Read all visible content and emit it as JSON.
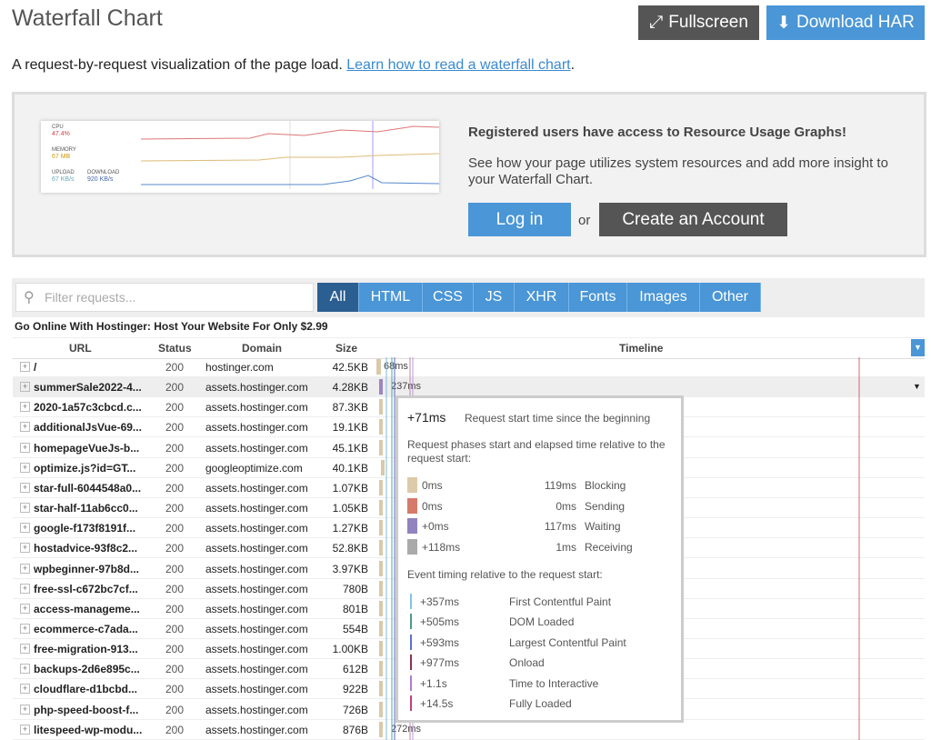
{
  "header": {
    "title": "Waterfall Chart",
    "fullscreen": "Fullscreen",
    "download": "Download HAR"
  },
  "intro": {
    "text": "A request-by-request visualization of the page load.",
    "link": "Learn how to read a waterfall chart",
    "end": "."
  },
  "promo": {
    "mini_chart": {
      "cpu_label": "CPU",
      "cpu_value": "47.4%",
      "memory_label": "MEMORY",
      "memory_value": "67 MB",
      "upload_label": "UPLOAD",
      "upload_value": "67 KB/s",
      "download_label": "DOWNLOAD",
      "download_value": "920 KB/s"
    },
    "heading": "Registered users have access to Resource Usage Graphs!",
    "text": "See how your page utilizes system resources and add more insight to your Waterfall Chart.",
    "login": "Log in",
    "or": "or",
    "create": "Create an Account"
  },
  "filter": {
    "placeholder": "Filter requests...",
    "tabs": [
      "All",
      "HTML",
      "CSS",
      "JS",
      "XHR",
      "Fonts",
      "Images",
      "Other"
    ]
  },
  "page_title": "Go Online With Hostinger: Host Your Website For Only $2.99",
  "table": {
    "columns": [
      "URL",
      "Status",
      "Domain",
      "Size",
      "Timeline"
    ],
    "rows": [
      {
        "url": "/",
        "status": 200,
        "domain": "hostinger.com",
        "size": "42.5KB",
        "time": "68ms"
      },
      {
        "url": "summerSale2022-4...",
        "status": 200,
        "domain": "assets.hostinger.com",
        "size": "4.28KB",
        "time": "237ms"
      },
      {
        "url": "2020-1a57c3cbcd.c...",
        "status": 200,
        "domain": "assets.hostinger.com",
        "size": "87.3KB"
      },
      {
        "url": "additionalJsVue-69...",
        "status": 200,
        "domain": "assets.hostinger.com",
        "size": "19.1KB"
      },
      {
        "url": "homepageVueJs-b...",
        "status": 200,
        "domain": "assets.hostinger.com",
        "size": "45.1KB"
      },
      {
        "url": "optimize.js?id=GT...",
        "status": 200,
        "domain": "googleoptimize.com",
        "size": "40.1KB"
      },
      {
        "url": "star-full-6044548a0...",
        "status": 200,
        "domain": "assets.hostinger.com",
        "size": "1.07KB"
      },
      {
        "url": "star-half-11ab6cc0...",
        "status": 200,
        "domain": "assets.hostinger.com",
        "size": "1.05KB"
      },
      {
        "url": "google-f173f8191f...",
        "status": 200,
        "domain": "assets.hostinger.com",
        "size": "1.27KB"
      },
      {
        "url": "hostadvice-93f8c2...",
        "status": 200,
        "domain": "assets.hostinger.com",
        "size": "52.8KB"
      },
      {
        "url": "wpbeginner-97b8d...",
        "status": 200,
        "domain": "assets.hostinger.com",
        "size": "3.97KB"
      },
      {
        "url": "free-ssl-c672bc7cf...",
        "status": 200,
        "domain": "assets.hostinger.com",
        "size": "780B"
      },
      {
        "url": "access-manageme...",
        "status": 200,
        "domain": "assets.hostinger.com",
        "size": "801B"
      },
      {
        "url": "ecommerce-c7ada...",
        "status": 200,
        "domain": "assets.hostinger.com",
        "size": "554B"
      },
      {
        "url": "free-migration-913...",
        "status": 200,
        "domain": "assets.hostinger.com",
        "size": "1.00KB"
      },
      {
        "url": "backups-2d6e895c...",
        "status": 200,
        "domain": "assets.hostinger.com",
        "size": "612B"
      },
      {
        "url": "cloudflare-d1bcbd...",
        "status": 200,
        "domain": "assets.hostinger.com",
        "size": "922B"
      },
      {
        "url": "php-speed-boost-f...",
        "status": 200,
        "domain": "assets.hostinger.com",
        "size": "726B"
      },
      {
        "url": "litespeed-wp-modu...",
        "status": 200,
        "domain": "assets.hostinger.com",
        "size": "876B",
        "time": "272ms"
      }
    ]
  },
  "tooltip": {
    "start": "+71ms",
    "start_label": "Request start time since the beginning",
    "phases_heading": "Request phases start and elapsed time relative to the request start:",
    "phases": [
      {
        "start": "0ms",
        "duration": "119ms",
        "name": "Blocking"
      },
      {
        "start": "0ms",
        "duration": "0ms",
        "name": "Sending"
      },
      {
        "start": "+0ms",
        "duration": "117ms",
        "name": "Waiting"
      },
      {
        "start": "+118ms",
        "duration": "1ms",
        "name": "Receiving"
      }
    ],
    "events_heading": "Event timing relative to the request start:",
    "events": [
      {
        "time": "+357ms",
        "name": "First Contentful Paint"
      },
      {
        "time": "+505ms",
        "name": "DOM Loaded"
      },
      {
        "time": "+593ms",
        "name": "Largest Contentful Paint"
      },
      {
        "time": "+977ms",
        "name": "Onload"
      },
      {
        "time": "+1.1s",
        "name": "Time to Interactive"
      },
      {
        "time": "+14.5s",
        "name": "Fully Loaded"
      }
    ]
  }
}
